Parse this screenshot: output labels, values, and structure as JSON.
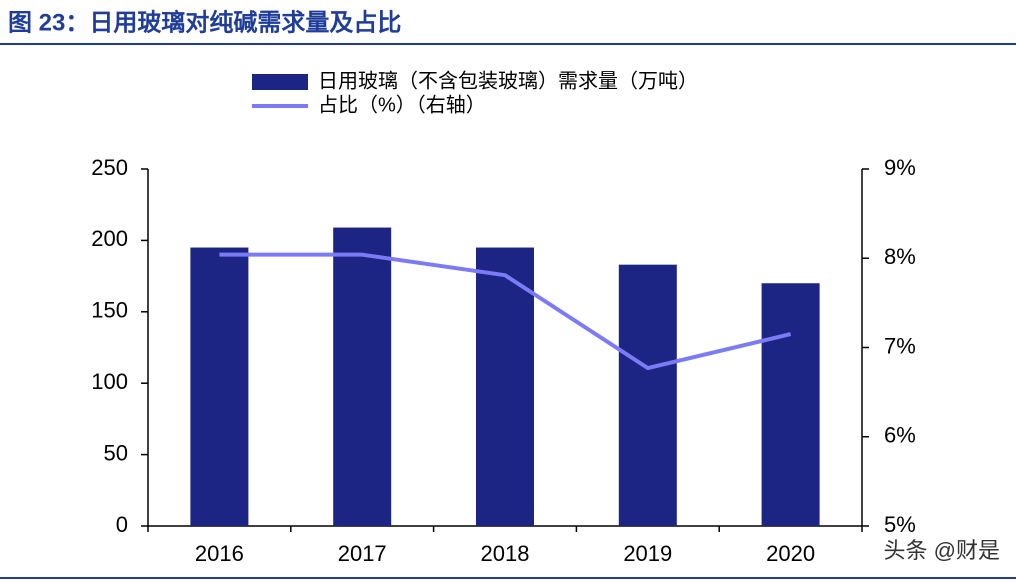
{
  "chart_data": {
    "type": "combo",
    "title": "图 23：日用玻璃对纯碱需求量及占比",
    "watermark": "头条 @财是",
    "categories": [
      "2016",
      "2017",
      "2018",
      "2019",
      "2020"
    ],
    "series": [
      {
        "name": "日用玻璃（不含包装玻璃）需求量（万吨）",
        "type": "bar",
        "color": "#1c2484",
        "values": [
          195,
          209,
          195,
          183,
          170
        ]
      },
      {
        "name": "占比（%）（右轴）",
        "type": "line",
        "axis": "y2",
        "color": "#7b7bf5",
        "values": [
          8.04,
          8.04,
          7.81,
          6.77,
          7.15
        ]
      }
    ],
    "ylim": [
      0,
      250
    ],
    "yticks": [
      0,
      50,
      100,
      150,
      200,
      250
    ],
    "y2lim": [
      5,
      9
    ],
    "y2ticks": [
      {
        "value": 5,
        "label": "5%"
      },
      {
        "value": 6,
        "label": "6%"
      },
      {
        "value": 7,
        "label": "7%"
      },
      {
        "value": 8,
        "label": "8%"
      },
      {
        "value": 9,
        "label": "9%"
      }
    ],
    "grid": false
  }
}
